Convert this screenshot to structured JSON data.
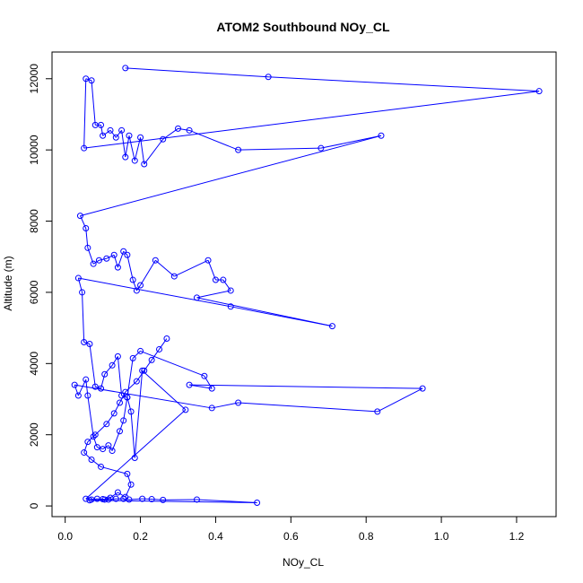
{
  "chart_data": {
    "type": "line",
    "title": "ATOM2 Southbound NOy_CL",
    "xlabel": "NOy_CL",
    "ylabel": "Altitude (m)",
    "xlim": [
      -0.035,
      1.305
    ],
    "ylim": [
      -300,
      12750
    ],
    "x_ticks": [
      "0.0",
      "0.2",
      "0.4",
      "0.6",
      "0.8",
      "1.0",
      "1.2"
    ],
    "x_tick_values": [
      0,
      0.2,
      0.4,
      0.6,
      0.8,
      1.0,
      1.2
    ],
    "y_ticks": [
      "0",
      "2000",
      "4000",
      "6000",
      "8000",
      "10000",
      "12000"
    ],
    "y_tick_values": [
      0,
      2000,
      4000,
      6000,
      8000,
      10000,
      12000
    ],
    "grid": false,
    "legend": "none",
    "series_color": "#0000ff",
    "marker": "open-circle",
    "series": [
      {
        "x": [
          0.16,
          0.54,
          1.26,
          0.05,
          0.055,
          0.07,
          0.08,
          0.095,
          0.1,
          0.12,
          0.135,
          0.15,
          0.16,
          0.17,
          0.185,
          0.2,
          0.21,
          0.26,
          0.3,
          0.33,
          0.46,
          0.68,
          0.84,
          0.04,
          0.055,
          0.06,
          0.075,
          0.09,
          0.11,
          0.13,
          0.14,
          0.155,
          0.165,
          0.18,
          0.19,
          0.2,
          0.24,
          0.29,
          0.38,
          0.4,
          0.42,
          0.44,
          0.35,
          0.71,
          0.44,
          0.035,
          0.045,
          0.05,
          0.065,
          0.08,
          0.095,
          0.105,
          0.125,
          0.14,
          0.15,
          0.165,
          0.18,
          0.2,
          0.37,
          0.39,
          0.33,
          0.95,
          0.83,
          0.46,
          0.39,
          0.025,
          0.035,
          0.055,
          0.06,
          0.075,
          0.085,
          0.1,
          0.115,
          0.125,
          0.145,
          0.155,
          0.165,
          0.175,
          0.185,
          0.205,
          0.32,
          0.055,
          0.07,
          0.085,
          0.1,
          0.115,
          0.135,
          0.155,
          0.17,
          0.205,
          0.23,
          0.26,
          0.35,
          0.51,
          0.065,
          0.105,
          0.12,
          0.14,
          0.16,
          0.175,
          0.165,
          0.095,
          0.07,
          0.05,
          0.06,
          0.08,
          0.11,
          0.13,
          0.145,
          0.16,
          0.19,
          0.21,
          0.23,
          0.25,
          0.27
        ],
        "y": [
          12300,
          12050,
          11650,
          10050,
          12000,
          11950,
          10700,
          10700,
          10400,
          10550,
          10350,
          10550,
          9800,
          10400,
          9700,
          10350,
          9600,
          10300,
          10600,
          10550,
          10000,
          10050,
          10400,
          8150,
          7800,
          7250,
          6800,
          6900,
          6950,
          7050,
          6700,
          7150,
          7050,
          6350,
          6050,
          6200,
          6900,
          6450,
          6900,
          6350,
          6350,
          6050,
          5850,
          5050,
          5600,
          6400,
          6000,
          4600,
          4550,
          3350,
          3300,
          3700,
          3950,
          4200,
          3100,
          3050,
          4150,
          4350,
          3650,
          3300,
          3400,
          3300,
          2650,
          2900,
          2750,
          3400,
          3100,
          3550,
          3100,
          1950,
          1650,
          1600,
          1700,
          1550,
          2100,
          2400,
          3050,
          2650,
          1350,
          3800,
          2700,
          200,
          180,
          200,
          190,
          180,
          200,
          200,
          180,
          200,
          190,
          170,
          180,
          90,
          160,
          180,
          230,
          380,
          250,
          600,
          900,
          1100,
          1300,
          1500,
          1800,
          2000,
          2300,
          2600,
          2900,
          3200,
          3500,
          3800,
          4100,
          4400,
          4700
        ]
      }
    ]
  }
}
